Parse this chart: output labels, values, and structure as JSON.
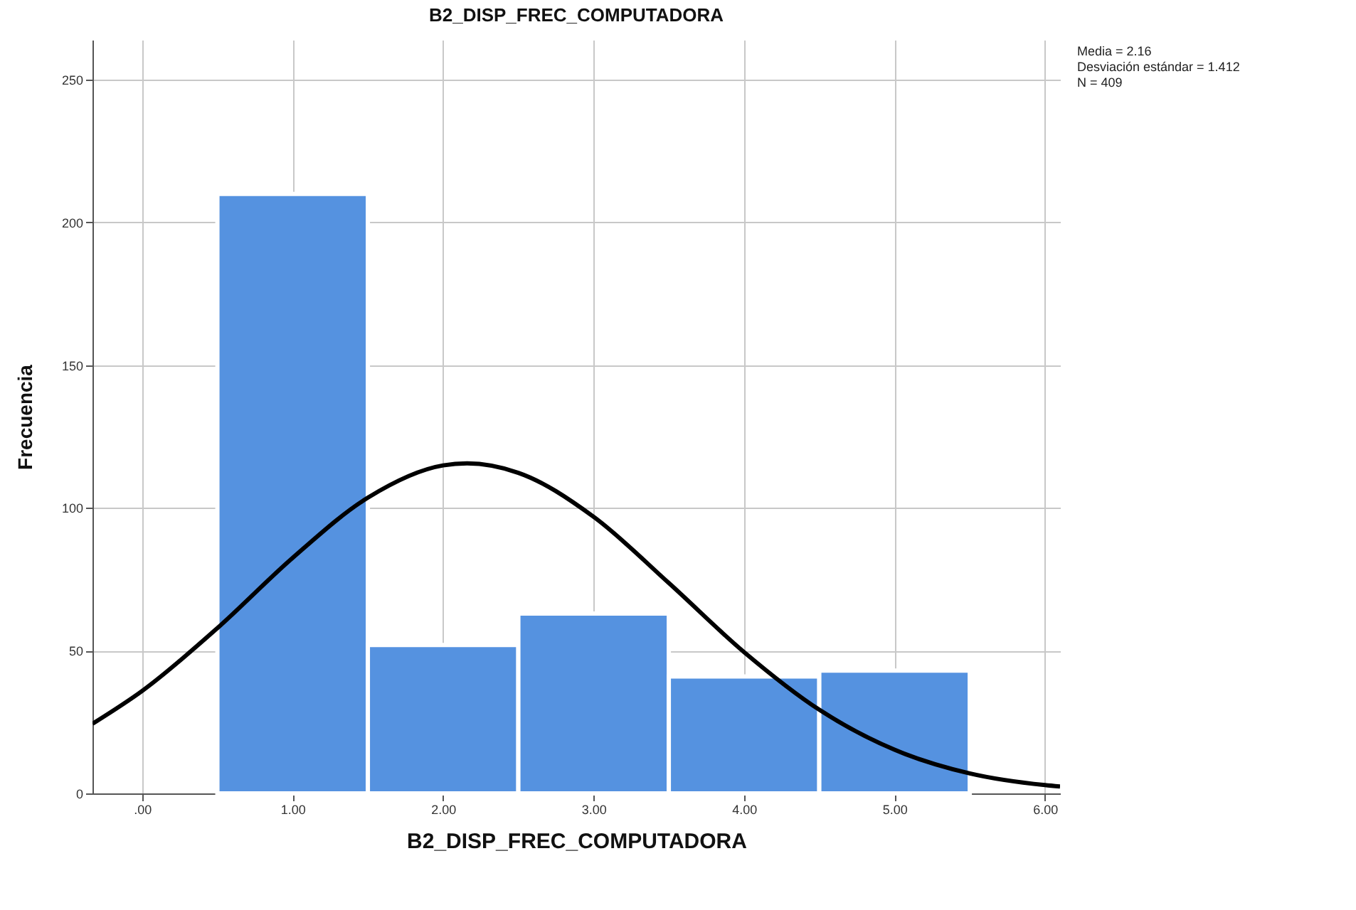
{
  "chart_data": {
    "type": "histogram",
    "title": "B2_DISP_FREC_COMPUTADORA",
    "xlabel": "B2_DISP_FREC_COMPUTADORA",
    "ylabel": "Frecuencia",
    "bins": [
      0.5,
      1.5,
      2.5,
      3.5,
      4.5,
      5.5
    ],
    "series": [
      {
        "type": "histogram",
        "color": "#5592e0",
        "values": [
          210,
          52,
          63,
          41,
          43
        ]
      },
      {
        "type": "line",
        "color": "#000000",
        "x": [
          -0.33,
          0,
          0.5,
          1,
          1.5,
          2,
          2.16,
          2.5,
          3,
          3.5,
          4,
          4.5,
          5,
          5.5,
          6,
          6.1
        ],
        "values": [
          24.4,
          35.9,
          57.9,
          82.5,
          103.6,
          114.9,
          115.6,
          112.3,
          96.9,
          73.7,
          49.5,
          29.3,
          15.3,
          7.0,
          2.9,
          2.4
        ]
      }
    ],
    "xlim": [
      -0.33,
      6.1
    ],
    "xticks": [
      {
        "value": 0,
        "label": ".00"
      },
      {
        "value": 1,
        "label": "1.00"
      },
      {
        "value": 2,
        "label": "2.00"
      },
      {
        "value": 3,
        "label": "3.00"
      },
      {
        "value": 4,
        "label": "4.00"
      },
      {
        "value": 5,
        "label": "5.00"
      },
      {
        "value": 6,
        "label": "6.00"
      }
    ],
    "ylim": [
      0,
      264
    ],
    "yticks": [
      0,
      50,
      100,
      150,
      200,
      250
    ],
    "grid": true,
    "annotations": [
      "Media = 2.16",
      "Desviación estándar = 1.412",
      "N = 409"
    ]
  }
}
